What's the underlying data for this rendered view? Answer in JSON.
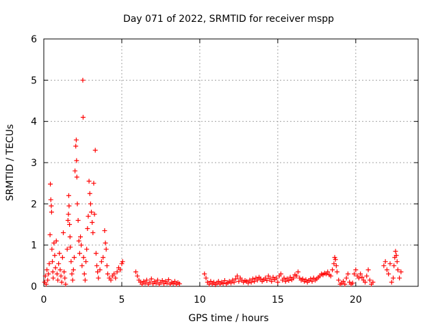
{
  "chart_data": {
    "type": "scatter",
    "title": "Day 071 of 2022, SRMTID for receiver mspp",
    "xlabel": "GPS time / hours",
    "ylabel": "SRMTID / TECUs",
    "xlim": [
      0,
      24
    ],
    "ylim": [
      0,
      6
    ],
    "xticks": [
      0,
      5,
      10,
      15,
      20
    ],
    "yticks": [
      0,
      1,
      2,
      3,
      4,
      5,
      6
    ],
    "grid": true,
    "marker": "+",
    "color": "#ff0000",
    "series": [
      {
        "name": "mspp",
        "points": [
          [
            0.05,
            0.1
          ],
          [
            0.1,
            0.25
          ],
          [
            0.15,
            0.05
          ],
          [
            0.2,
            0.4
          ],
          [
            0.25,
            0.15
          ],
          [
            0.3,
            0.3
          ],
          [
            0.35,
            0.55
          ],
          [
            0.4,
            1.25
          ],
          [
            0.42,
            2.48
          ],
          [
            0.45,
            2.1
          ],
          [
            0.48,
            1.95
          ],
          [
            0.5,
            1.8
          ],
          [
            0.52,
            0.9
          ],
          [
            0.55,
            0.6
          ],
          [
            0.58,
            0.35
          ],
          [
            0.6,
            0.2
          ],
          [
            0.65,
            1.05
          ],
          [
            0.7,
            0.75
          ],
          [
            0.75,
            0.45
          ],
          [
            0.8,
            1.1
          ],
          [
            0.85,
            0.3
          ],
          [
            0.9,
            0.15
          ],
          [
            0.95,
            0.55
          ],
          [
            1.0,
            0.8
          ],
          [
            1.05,
            0.4
          ],
          [
            1.1,
            0.25
          ],
          [
            1.15,
            0.1
          ],
          [
            1.2,
            0.7
          ],
          [
            1.25,
            1.3
          ],
          [
            1.3,
            0.35
          ],
          [
            1.35,
            0.2
          ],
          [
            1.4,
            0.05
          ],
          [
            1.5,
            0.9
          ],
          [
            1.55,
            1.6
          ],
          [
            1.58,
            1.75
          ],
          [
            1.6,
            2.2
          ],
          [
            1.62,
            1.95
          ],
          [
            1.65,
            1.5
          ],
          [
            1.68,
            1.2
          ],
          [
            1.7,
            0.95
          ],
          [
            1.75,
            0.6
          ],
          [
            1.8,
            0.3
          ],
          [
            1.85,
            0.15
          ],
          [
            1.9,
            0.4
          ],
          [
            1.95,
            0.7
          ],
          [
            2.0,
            2.8
          ],
          [
            2.05,
            3.4
          ],
          [
            2.08,
            3.55
          ],
          [
            2.1,
            3.05
          ],
          [
            2.12,
            2.65
          ],
          [
            2.15,
            2.0
          ],
          [
            2.2,
            1.6
          ],
          [
            2.25,
            1.1
          ],
          [
            2.3,
            0.8
          ],
          [
            2.35,
            1.2
          ],
          [
            2.4,
            1.0
          ],
          [
            2.45,
            0.5
          ],
          [
            2.5,
            5.0
          ],
          [
            2.52,
            4.1
          ],
          [
            2.55,
            0.7
          ],
          [
            2.6,
            0.3
          ],
          [
            2.65,
            0.15
          ],
          [
            2.7,
            0.6
          ],
          [
            2.75,
            0.9
          ],
          [
            2.8,
            1.4
          ],
          [
            2.85,
            1.7
          ],
          [
            2.9,
            2.55
          ],
          [
            2.95,
            2.25
          ],
          [
            3.0,
            2.0
          ],
          [
            3.05,
            1.8
          ],
          [
            3.1,
            1.55
          ],
          [
            3.15,
            1.3
          ],
          [
            3.2,
            2.5
          ],
          [
            3.25,
            1.75
          ],
          [
            3.3,
            3.3
          ],
          [
            3.35,
            0.8
          ],
          [
            3.4,
            0.5
          ],
          [
            3.45,
            0.35
          ],
          [
            3.5,
            0.2
          ],
          [
            3.6,
            0.4
          ],
          [
            3.7,
            0.6
          ],
          [
            3.8,
            0.7
          ],
          [
            3.9,
            1.35
          ],
          [
            3.95,
            1.05
          ],
          [
            4.0,
            0.9
          ],
          [
            4.05,
            0.5
          ],
          [
            4.1,
            0.3
          ],
          [
            4.2,
            0.2
          ],
          [
            4.3,
            0.15
          ],
          [
            4.4,
            0.25
          ],
          [
            4.5,
            0.3
          ],
          [
            4.6,
            0.2
          ],
          [
            4.7,
            0.35
          ],
          [
            4.8,
            0.45
          ],
          [
            4.9,
            0.4
          ],
          [
            5.0,
            0.55
          ],
          [
            5.05,
            0.6
          ],
          [
            5.9,
            0.35
          ],
          [
            6.0,
            0.25
          ],
          [
            6.1,
            0.15
          ],
          [
            6.2,
            0.1
          ],
          [
            6.3,
            0.05
          ],
          [
            6.4,
            0.12
          ],
          [
            6.5,
            0.08
          ],
          [
            6.6,
            0.15
          ],
          [
            6.7,
            0.05
          ],
          [
            6.8,
            0.1
          ],
          [
            6.9,
            0.18
          ],
          [
            7.0,
            0.06
          ],
          [
            7.1,
            0.12
          ],
          [
            7.2,
            0.08
          ],
          [
            7.3,
            0.15
          ],
          [
            7.4,
            0.05
          ],
          [
            7.5,
            0.1
          ],
          [
            7.6,
            0.14
          ],
          [
            7.7,
            0.06
          ],
          [
            7.8,
            0.12
          ],
          [
            7.9,
            0.08
          ],
          [
            8.0,
            0.16
          ],
          [
            8.1,
            0.05
          ],
          [
            8.2,
            0.1
          ],
          [
            8.3,
            0.07
          ],
          [
            8.4,
            0.12
          ],
          [
            8.5,
            0.05
          ],
          [
            8.6,
            0.09
          ],
          [
            8.7,
            0.06
          ],
          [
            10.3,
            0.3
          ],
          [
            10.4,
            0.2
          ],
          [
            10.5,
            0.1
          ],
          [
            10.6,
            0.05
          ],
          [
            10.7,
            0.12
          ],
          [
            10.8,
            0.06
          ],
          [
            10.9,
            0.1
          ],
          [
            11.0,
            0.04
          ],
          [
            11.1,
            0.08
          ],
          [
            11.2,
            0.12
          ],
          [
            11.3,
            0.05
          ],
          [
            11.4,
            0.1
          ],
          [
            11.5,
            0.07
          ],
          [
            11.6,
            0.14
          ],
          [
            11.7,
            0.06
          ],
          [
            11.8,
            0.09
          ],
          [
            11.9,
            0.12
          ],
          [
            12.0,
            0.08
          ],
          [
            12.1,
            0.15
          ],
          [
            12.2,
            0.1
          ],
          [
            12.3,
            0.18
          ],
          [
            12.4,
            0.25
          ],
          [
            12.5,
            0.12
          ],
          [
            12.6,
            0.2
          ],
          [
            12.7,
            0.15
          ],
          [
            12.8,
            0.1
          ],
          [
            12.9,
            0.14
          ],
          [
            13.0,
            0.12
          ],
          [
            13.1,
            0.08
          ],
          [
            13.2,
            0.15
          ],
          [
            13.3,
            0.1
          ],
          [
            13.4,
            0.18
          ],
          [
            13.5,
            0.12
          ],
          [
            13.6,
            0.2
          ],
          [
            13.7,
            0.15
          ],
          [
            13.8,
            0.22
          ],
          [
            13.9,
            0.18
          ],
          [
            14.0,
            0.12
          ],
          [
            14.1,
            0.16
          ],
          [
            14.2,
            0.2
          ],
          [
            14.3,
            0.14
          ],
          [
            14.4,
            0.25
          ],
          [
            14.5,
            0.18
          ],
          [
            14.6,
            0.12
          ],
          [
            14.7,
            0.22
          ],
          [
            14.8,
            0.16
          ],
          [
            14.9,
            0.2
          ],
          [
            15.0,
            0.1
          ],
          [
            15.1,
            0.25
          ],
          [
            15.2,
            0.3
          ],
          [
            15.3,
            0.15
          ],
          [
            15.4,
            0.2
          ],
          [
            15.5,
            0.12
          ],
          [
            15.6,
            0.18
          ],
          [
            15.7,
            0.14
          ],
          [
            15.8,
            0.22
          ],
          [
            15.9,
            0.16
          ],
          [
            16.0,
            0.2
          ],
          [
            16.1,
            0.28
          ],
          [
            16.2,
            0.25
          ],
          [
            16.3,
            0.35
          ],
          [
            16.4,
            0.2
          ],
          [
            16.5,
            0.15
          ],
          [
            16.6,
            0.18
          ],
          [
            16.7,
            0.12
          ],
          [
            16.8,
            0.16
          ],
          [
            16.9,
            0.1
          ],
          [
            17.0,
            0.14
          ],
          [
            17.1,
            0.18
          ],
          [
            17.2,
            0.12
          ],
          [
            17.3,
            0.2
          ],
          [
            17.4,
            0.15
          ],
          [
            17.5,
            0.18
          ],
          [
            17.6,
            0.22
          ],
          [
            17.7,
            0.25
          ],
          [
            17.8,
            0.3
          ],
          [
            17.9,
            0.28
          ],
          [
            18.0,
            0.32
          ],
          [
            18.1,
            0.3
          ],
          [
            18.2,
            0.35
          ],
          [
            18.3,
            0.28
          ],
          [
            18.4,
            0.25
          ],
          [
            18.5,
            0.4
          ],
          [
            18.6,
            0.55
          ],
          [
            18.65,
            0.7
          ],
          [
            18.7,
            0.65
          ],
          [
            18.75,
            0.5
          ],
          [
            18.8,
            0.35
          ],
          [
            18.9,
            0.15
          ],
          [
            19.0,
            0.05
          ],
          [
            19.1,
            0.08
          ],
          [
            19.2,
            0.12
          ],
          [
            19.3,
            0.05
          ],
          [
            19.4,
            0.2
          ],
          [
            19.5,
            0.3
          ],
          [
            19.6,
            0.1
          ],
          [
            19.7,
            0.05
          ],
          [
            19.8,
            0.08
          ],
          [
            19.9,
            0.3
          ],
          [
            20.0,
            0.4
          ],
          [
            20.1,
            0.25
          ],
          [
            20.2,
            0.2
          ],
          [
            20.3,
            0.3
          ],
          [
            20.4,
            0.22
          ],
          [
            20.5,
            0.15
          ],
          [
            20.6,
            0.1
          ],
          [
            20.7,
            0.25
          ],
          [
            20.8,
            0.4
          ],
          [
            20.9,
            0.15
          ],
          [
            21.0,
            0.05
          ],
          [
            21.1,
            0.1
          ],
          [
            21.8,
            0.5
          ],
          [
            21.9,
            0.6
          ],
          [
            22.0,
            0.4
          ],
          [
            22.1,
            0.3
          ],
          [
            22.2,
            0.55
          ],
          [
            22.3,
            0.1
          ],
          [
            22.4,
            0.2
          ],
          [
            22.45,
            0.5
          ],
          [
            22.5,
            0.7
          ],
          [
            22.55,
            0.85
          ],
          [
            22.6,
            0.75
          ],
          [
            22.65,
            0.6
          ],
          [
            22.7,
            0.4
          ],
          [
            22.8,
            0.2
          ],
          [
            22.9,
            0.35
          ]
        ]
      }
    ]
  }
}
